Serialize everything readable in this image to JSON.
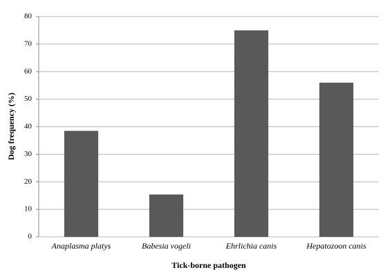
{
  "chart_data": {
    "type": "bar",
    "categories": [
      "Anaplasma platys",
      "Babesia vogeli",
      "Ehrlichia canis",
      "Hepatozoon canis"
    ],
    "values": [
      38.5,
      15.4,
      75,
      56
    ],
    "color": "#595959",
    "x_label": "Tick-borne pathogen",
    "y_label": "Dog frequency (%)",
    "ylim": [
      0,
      80
    ],
    "yticks": [
      0,
      10,
      20,
      30,
      40,
      50,
      60,
      70,
      80
    ],
    "grid": true
  }
}
